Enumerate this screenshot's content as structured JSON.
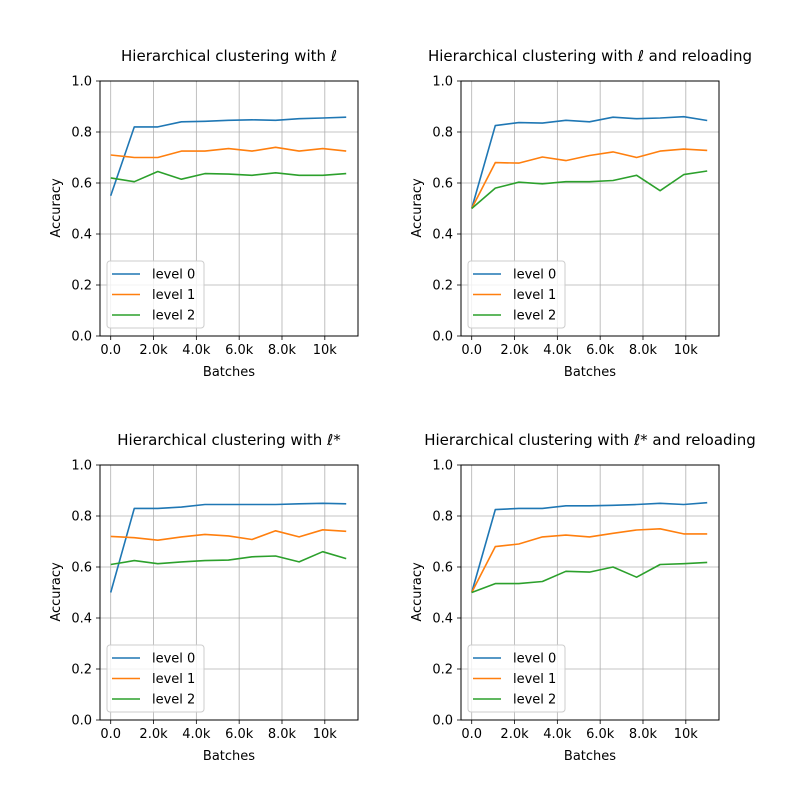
{
  "chart_data": [
    {
      "type": "line",
      "title": "Hierarchical clustering with ℓ",
      "xlabel": "Batches",
      "ylabel": "Accuracy",
      "xlim": [
        -500,
        11550
      ],
      "ylim": [
        0,
        1
      ],
      "xticks": [
        0,
        2000,
        4000,
        6000,
        8000,
        10000
      ],
      "xtick_labels": [
        "0.0",
        "2.0k",
        "4.0k",
        "6.0k",
        "8.0k",
        "10k"
      ],
      "yticks": [
        0,
        0.2,
        0.4,
        0.6,
        0.8,
        1.0
      ],
      "ytick_labels": [
        "0.0",
        "0.2",
        "0.4",
        "0.6",
        "0.8",
        "1.0"
      ],
      "grid": true,
      "legend_position": "lower-left",
      "x": [
        0,
        1100,
        2200,
        3300,
        4400,
        5500,
        6600,
        7700,
        8800,
        9900,
        11000
      ],
      "series": [
        {
          "name": "level 0",
          "color": "#1f77b4",
          "values": [
            0.55,
            0.82,
            0.82,
            0.84,
            0.842,
            0.846,
            0.848,
            0.846,
            0.852,
            0.855,
            0.858
          ]
        },
        {
          "name": "level 1",
          "color": "#ff7f0e",
          "values": [
            0.71,
            0.7,
            0.7,
            0.725,
            0.725,
            0.735,
            0.725,
            0.74,
            0.725,
            0.735,
            0.725
          ]
        },
        {
          "name": "level 2",
          "color": "#2ca02c",
          "values": [
            0.62,
            0.605,
            0.645,
            0.615,
            0.637,
            0.635,
            0.63,
            0.64,
            0.63,
            0.63,
            0.637
          ]
        }
      ]
    },
    {
      "type": "line",
      "title": "Hierarchical clustering with ℓ and reloading",
      "xlabel": "Batches",
      "ylabel": "Accuracy",
      "xlim": [
        -500,
        11550
      ],
      "ylim": [
        0,
        1
      ],
      "xticks": [
        0,
        2000,
        4000,
        6000,
        8000,
        10000
      ],
      "xtick_labels": [
        "0.0",
        "2.0k",
        "4.0k",
        "6.0k",
        "8.0k",
        "10k"
      ],
      "yticks": [
        0,
        0.2,
        0.4,
        0.6,
        0.8,
        1.0
      ],
      "ytick_labels": [
        "0.0",
        "0.2",
        "0.4",
        "0.6",
        "0.8",
        "1.0"
      ],
      "grid": true,
      "legend_position": "lower-left",
      "x": [
        0,
        1100,
        2200,
        3300,
        4400,
        5500,
        6600,
        7700,
        8800,
        9900,
        11000
      ],
      "series": [
        {
          "name": "level 0",
          "color": "#1f77b4",
          "values": [
            0.5,
            0.825,
            0.837,
            0.835,
            0.846,
            0.84,
            0.858,
            0.852,
            0.855,
            0.86,
            0.845
          ]
        },
        {
          "name": "level 1",
          "color": "#ff7f0e",
          "values": [
            0.5,
            0.68,
            0.678,
            0.702,
            0.688,
            0.708,
            0.722,
            0.7,
            0.725,
            0.733,
            0.728
          ]
        },
        {
          "name": "level 2",
          "color": "#2ca02c",
          "values": [
            0.5,
            0.58,
            0.603,
            0.597,
            0.605,
            0.605,
            0.61,
            0.63,
            0.57,
            0.633,
            0.647
          ]
        }
      ]
    },
    {
      "type": "line",
      "title": "Hierarchical clustering with ℓ*",
      "xlabel": "Batches",
      "ylabel": "Accuracy",
      "xlim": [
        -500,
        11550
      ],
      "ylim": [
        0,
        1
      ],
      "xticks": [
        0,
        2000,
        4000,
        6000,
        8000,
        10000
      ],
      "xtick_labels": [
        "0.0",
        "2.0k",
        "4.0k",
        "6.0k",
        "8.0k",
        "10k"
      ],
      "yticks": [
        0,
        0.2,
        0.4,
        0.6,
        0.8,
        1.0
      ],
      "ytick_labels": [
        "0.0",
        "0.2",
        "0.4",
        "0.6",
        "0.8",
        "1.0"
      ],
      "grid": true,
      "legend_position": "lower-left",
      "x": [
        0,
        1100,
        2200,
        3300,
        4400,
        5500,
        6600,
        7700,
        8800,
        9900,
        11000
      ],
      "series": [
        {
          "name": "level 0",
          "color": "#1f77b4",
          "values": [
            0.5,
            0.83,
            0.83,
            0.835,
            0.845,
            0.845,
            0.845,
            0.845,
            0.848,
            0.85,
            0.848
          ]
        },
        {
          "name": "level 1",
          "color": "#ff7f0e",
          "values": [
            0.72,
            0.715,
            0.705,
            0.718,
            0.728,
            0.722,
            0.708,
            0.742,
            0.718,
            0.746,
            0.74
          ]
        },
        {
          "name": "level 2",
          "color": "#2ca02c",
          "values": [
            0.61,
            0.625,
            0.613,
            0.62,
            0.625,
            0.627,
            0.64,
            0.643,
            0.62,
            0.66,
            0.633
          ]
        }
      ]
    },
    {
      "type": "line",
      "title": "Hierarchical clustering with ℓ* and reloading",
      "xlabel": "Batches",
      "ylabel": "Accuracy",
      "xlim": [
        -500,
        11550
      ],
      "ylim": [
        0,
        1
      ],
      "xticks": [
        0,
        2000,
        4000,
        6000,
        8000,
        10000
      ],
      "xtick_labels": [
        "0.0",
        "2.0k",
        "4.0k",
        "6.0k",
        "8.0k",
        "10k"
      ],
      "yticks": [
        0,
        0.2,
        0.4,
        0.6,
        0.8,
        1.0
      ],
      "ytick_labels": [
        "0.0",
        "0.2",
        "0.4",
        "0.6",
        "0.8",
        "1.0"
      ],
      "grid": true,
      "legend_position": "lower-left",
      "x": [
        0,
        1100,
        2200,
        3300,
        4400,
        5500,
        6600,
        7700,
        8800,
        9900,
        11000
      ],
      "series": [
        {
          "name": "level 0",
          "color": "#1f77b4",
          "values": [
            0.5,
            0.825,
            0.83,
            0.83,
            0.84,
            0.84,
            0.842,
            0.845,
            0.85,
            0.845,
            0.852
          ]
        },
        {
          "name": "level 1",
          "color": "#ff7f0e",
          "values": [
            0.5,
            0.68,
            0.69,
            0.718,
            0.725,
            0.718,
            0.732,
            0.745,
            0.75,
            0.73,
            0.73
          ]
        },
        {
          "name": "level 2",
          "color": "#2ca02c",
          "values": [
            0.5,
            0.535,
            0.535,
            0.543,
            0.583,
            0.58,
            0.6,
            0.56,
            0.61,
            0.613,
            0.618
          ]
        }
      ]
    }
  ]
}
